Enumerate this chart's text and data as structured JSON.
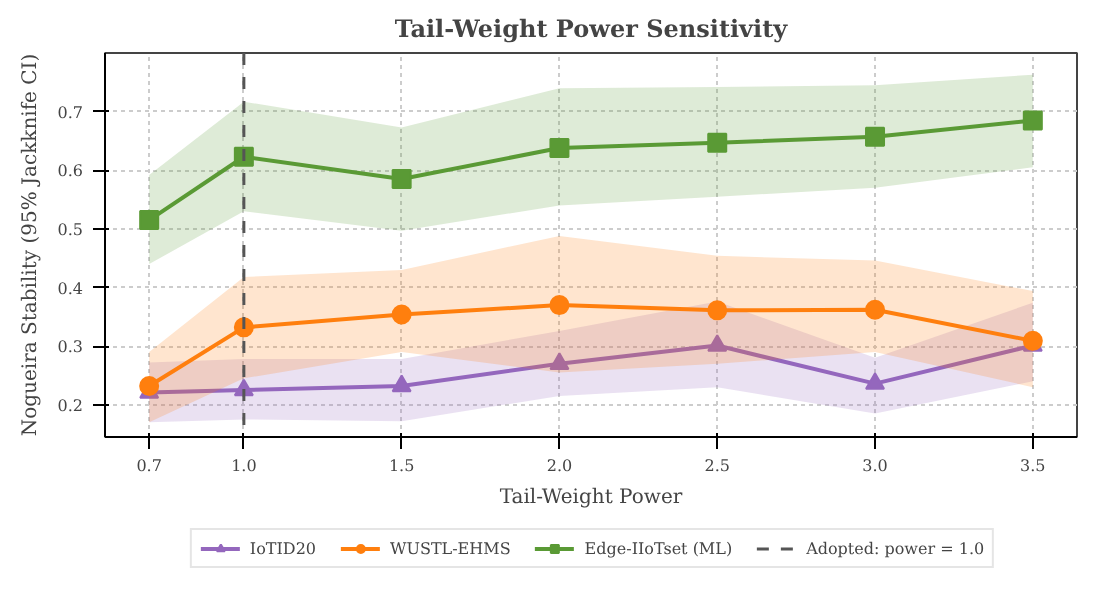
{
  "chart_data": {
    "type": "line",
    "title": "Tail-Weight Power Sensitivity",
    "xlabel": "Tail-Weight Power",
    "ylabel": "Nogueira Stability (95% Jackknife CI)",
    "x": [
      0.7,
      1.0,
      1.5,
      2.0,
      2.5,
      3.0,
      3.5
    ],
    "xlim": [
      0.56,
      3.64
    ],
    "xticks": [
      0.7,
      {
        "value": 1,
        "label": "1.0"
      },
      1.5,
      {
        "value": 2,
        "label": "2.0"
      },
      2.5,
      {
        "value": 3,
        "label": "3.0"
      },
      3.5
    ],
    "ylim": [
      0.145,
      0.8
    ],
    "yticks": [
      0.2,
      0.3,
      0.4,
      0.5,
      0.6,
      0.7
    ],
    "grid": true,
    "legend": "bottom",
    "line_style": "solid",
    "series": [
      {
        "name": "IoTID20",
        "color": "#9467bd",
        "marker": "triangle",
        "values": [
          0.221,
          0.225,
          0.232,
          0.27,
          0.301,
          0.236,
          0.301
        ],
        "lower": [
          0.17,
          0.175,
          0.172,
          0.215,
          0.23,
          0.185,
          0.24
        ],
        "upper": [
          0.272,
          0.278,
          0.278,
          0.326,
          0.376,
          0.28,
          0.374
        ]
      },
      {
        "name": "WUSTL-EHMS",
        "color": "#ff7f0e",
        "marker": "circle",
        "values": [
          0.232,
          0.332,
          0.354,
          0.37,
          0.361,
          0.362,
          0.309
        ],
        "lower": [
          0.17,
          0.245,
          0.29,
          0.255,
          0.27,
          0.29,
          0.23
        ],
        "upper": [
          0.29,
          0.418,
          0.43,
          0.488,
          0.454,
          0.446,
          0.394
        ]
      },
      {
        "name": "Edge-IIoTset (ML)",
        "color": "#5a9a35",
        "marker": "square",
        "values": [
          0.515,
          0.623,
          0.585,
          0.638,
          0.647,
          0.657,
          0.685
        ],
        "lower": [
          0.44,
          0.53,
          0.497,
          0.54,
          0.555,
          0.57,
          0.605
        ],
        "upper": [
          0.592,
          0.717,
          0.673,
          0.74,
          0.742,
          0.745,
          0.763
        ]
      }
    ],
    "ref_lines": [
      {
        "axis": "x",
        "value": 1.0,
        "label": "Adopted: power = 1.0",
        "color": "#555555",
        "line_style": "dashed"
      }
    ]
  }
}
